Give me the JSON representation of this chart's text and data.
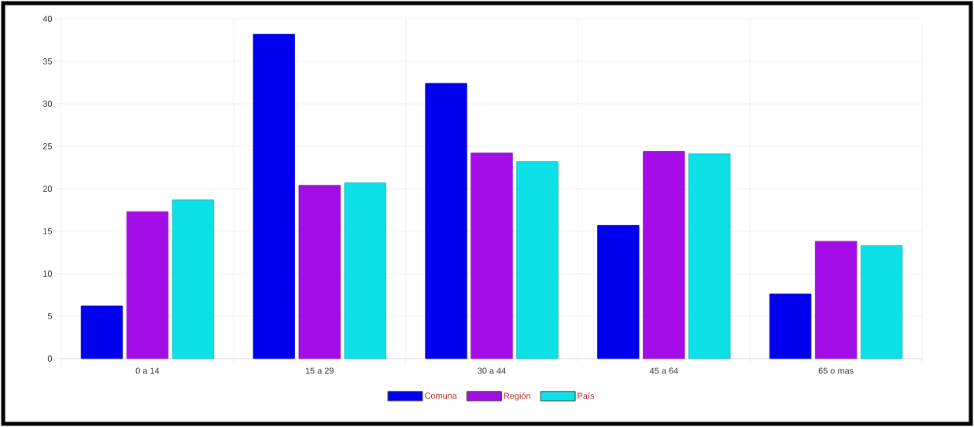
{
  "chart_data": {
    "type": "bar",
    "categories": [
      "0 a 14",
      "15 a 29",
      "30 a 44",
      "45 a 64",
      "65 o mas"
    ],
    "series": [
      {
        "name": "Comuna",
        "color": "#0000ee",
        "values": [
          6.2,
          38.2,
          32.4,
          15.7,
          7.6
        ]
      },
      {
        "name": "Región",
        "color": "#a50de8",
        "values": [
          17.3,
          20.4,
          24.2,
          24.4,
          13.8
        ]
      },
      {
        "name": "País",
        "color": "#0ee0e8",
        "values": [
          18.7,
          20.7,
          23.2,
          24.1,
          13.3
        ]
      }
    ],
    "ylim": [
      0,
      40
    ],
    "yticks": [
      0,
      5,
      10,
      15,
      20,
      25,
      30,
      35,
      40
    ],
    "grid": true,
    "legend": "bottom"
  }
}
